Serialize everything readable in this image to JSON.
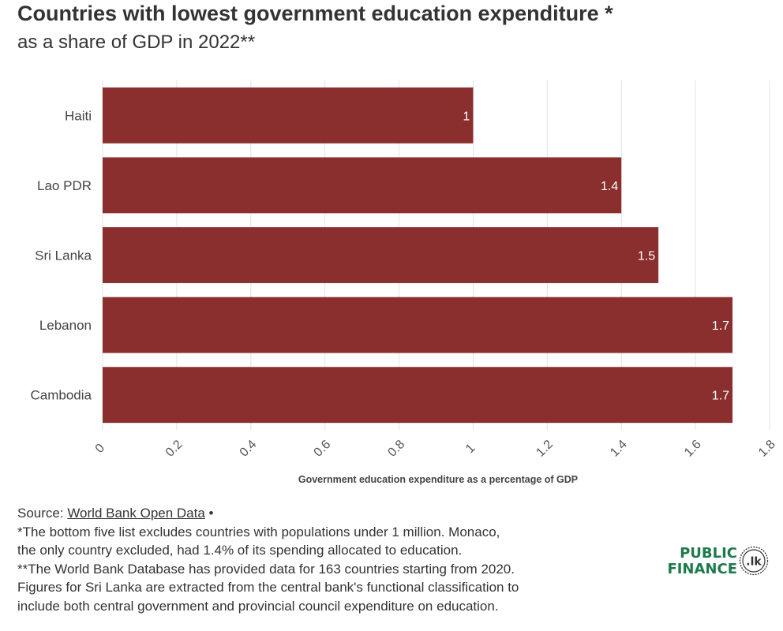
{
  "title": "Countries with lowest government education expenditure *",
  "subtitle": "as a share of GDP in 2022**",
  "chart_data": {
    "type": "bar",
    "orientation": "horizontal",
    "categories": [
      "Haiti",
      "Lao PDR",
      "Sri Lanka",
      "Lebanon",
      "Cambodia"
    ],
    "values": [
      1,
      1.4,
      1.5,
      1.7,
      1.7
    ],
    "data_labels": [
      "1",
      "1.4",
      "1.5",
      "1.7",
      "1.7"
    ],
    "xlabel": "Government education expenditure as a percentage of GDP",
    "ylabel": "",
    "xlim": [
      0,
      1.8
    ],
    "xticks": [
      0,
      0.2,
      0.4,
      0.6,
      0.8,
      1,
      1.2,
      1.4,
      1.6,
      1.8
    ],
    "xtick_labels": [
      "0",
      "0.2",
      "0.4",
      "0.6",
      "0.8",
      "1",
      "1.2",
      "1.4",
      "1.6",
      "1.8"
    ],
    "grid": "vertical",
    "bar_color": "#8b2e2e"
  },
  "footer": {
    "source_prefix": "Source: ",
    "source_link": "World Bank Open Data",
    "source_suffix": " •",
    "note1_line1": "*The bottom five list excludes countries with populations under 1 million. Monaco,",
    "note1_line2": "the only country excluded, had 1.4% of its spending allocated to education.",
    "note2_line1": "**The World Bank Database has provided data for 163 countries starting from 2020.",
    "note2_line2": "Figures for Sri Lanka are extracted from the central bank's functional classification to",
    "note2_line3": "include both central government and provincial council expenditure on education."
  },
  "logo": {
    "line1": "PUBLIC",
    "line2": "FINANCE",
    "badge": ".lk",
    "color": "#1e7a4c"
  }
}
